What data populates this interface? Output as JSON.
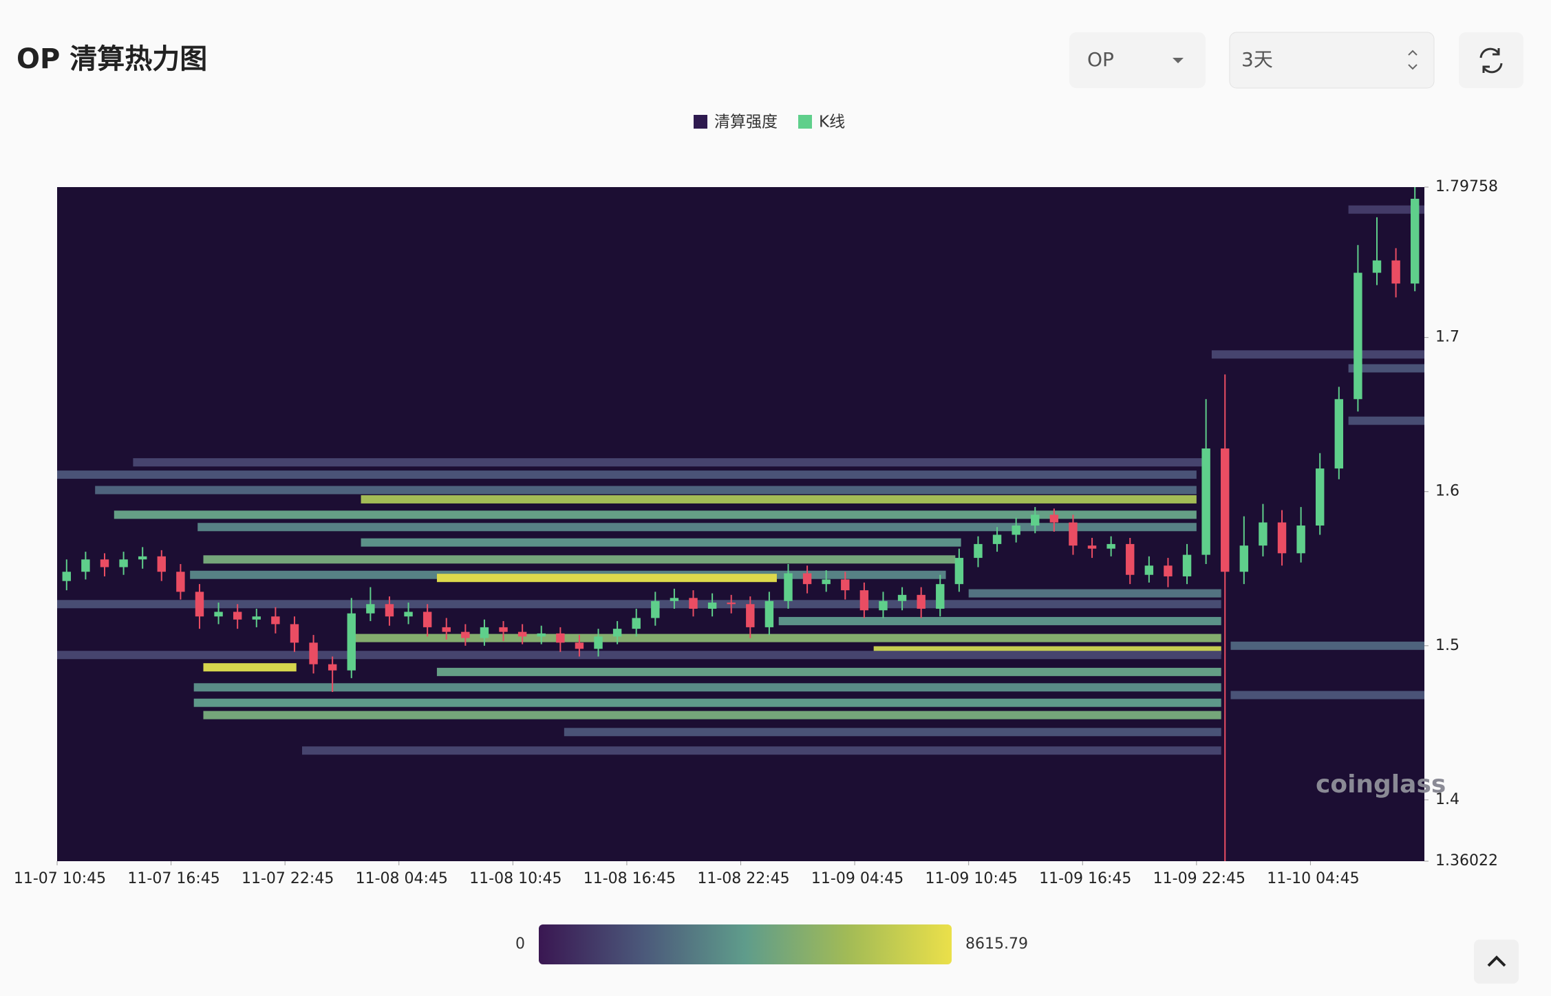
{
  "chart_data": {
    "type": "liquidation-heatmap",
    "title": "OP 清算热力图",
    "symbol": "OP",
    "range": "3天",
    "watermark": "coinglass",
    "background": "#1c0e33",
    "xlim": [
      0,
      72
    ],
    "xticks": [
      {
        "value": 0,
        "label": "11-07 10:45"
      },
      {
        "value": 6,
        "label": "11-07 16:45"
      },
      {
        "value": 12,
        "label": "11-07 22:45"
      },
      {
        "value": 18,
        "label": "11-08 04:45"
      },
      {
        "value": 24,
        "label": "11-08 10:45"
      },
      {
        "value": 30,
        "label": "11-08 16:45"
      },
      {
        "value": 36,
        "label": "11-08 22:45"
      },
      {
        "value": 42,
        "label": "11-09 04:45"
      },
      {
        "value": 48,
        "label": "11-09 10:45"
      },
      {
        "value": 54,
        "label": "11-09 16:45"
      },
      {
        "value": 60,
        "label": "11-09 22:45"
      },
      {
        "value": 66,
        "label": "11-10 04:45"
      }
    ],
    "ylim": [
      1.36022,
      1.79758
    ],
    "yticks": [
      1.36022,
      1.4,
      1.5,
      1.6,
      1.7,
      1.79758
    ],
    "colorbar": {
      "min": 0,
      "max": 8615.79,
      "colors": [
        "#3a1752",
        "#4b587a",
        "#5f9c8b",
        "#a2bb56",
        "#ebe04a"
      ]
    },
    "series": [
      {
        "name": "清算强度",
        "color": "#2e1a4f",
        "price": [
          1.619,
          1.611,
          1.601,
          1.595,
          1.585,
          1.577,
          1.567,
          1.556,
          1.546,
          1.544,
          1.534,
          1.527,
          1.516,
          1.505,
          1.497,
          1.494,
          1.486,
          1.483,
          1.473,
          1.463,
          1.455,
          1.444,
          1.432,
          1.783,
          1.689,
          1.68,
          1.646,
          1.5,
          1.468
        ],
        "start": [
          4,
          0,
          2,
          16,
          3,
          7.4,
          16,
          7.7,
          7,
          20,
          48,
          0,
          38,
          15.5,
          43,
          0,
          7.7,
          20,
          7.2,
          7.2,
          7.7,
          26.7,
          12.9,
          68,
          60.8,
          68,
          68,
          61.8,
          61.8
        ],
        "end": [
          60.3,
          60,
          60,
          60,
          60,
          60,
          47.6,
          47.3,
          46.8,
          37.9,
          61.3,
          61.3,
          61.3,
          61.3,
          61.3,
          61.3,
          12.6,
          61.3,
          61.3,
          61.3,
          61.3,
          61.3,
          61.3,
          72,
          72,
          72,
          72,
          72,
          72
        ],
        "values": [
          1500,
          2000,
          2500,
          6500,
          4500,
          3500,
          4000,
          5000,
          3500,
          8200,
          3000,
          1800,
          4000,
          5500,
          7500,
          1500,
          8000,
          4500,
          3800,
          4200,
          5000,
          2000,
          1500,
          1200,
          1500,
          2000,
          1800,
          2500,
          2000
        ]
      },
      {
        "name": "K线",
        "color": "#5fcf8b",
        "down_color": "#ea4d63",
        "x": [
          0,
          1,
          2,
          3,
          4,
          5,
          6,
          7,
          8,
          9,
          10,
          11,
          12,
          13,
          14,
          15,
          16,
          17,
          18,
          19,
          20,
          21,
          22,
          23,
          24,
          25,
          26,
          27,
          28,
          29,
          30,
          31,
          32,
          33,
          34,
          35,
          36,
          37,
          38,
          39,
          40,
          41,
          42,
          43,
          44,
          45,
          46,
          47,
          48,
          49,
          50,
          51,
          52,
          53,
          54,
          55,
          56,
          57,
          58,
          59,
          60,
          61,
          62,
          63,
          64,
          65,
          66,
          67,
          68,
          69,
          70,
          71
        ],
        "open": [
          1.542,
          1.548,
          1.556,
          1.551,
          1.556,
          1.558,
          1.548,
          1.535,
          1.519,
          1.522,
          1.517,
          1.519,
          1.514,
          1.502,
          1.488,
          1.484,
          1.521,
          1.527,
          1.519,
          1.522,
          1.512,
          1.509,
          1.505,
          1.512,
          1.509,
          1.506,
          1.508,
          1.502,
          1.498,
          1.506,
          1.511,
          1.518,
          1.529,
          1.531,
          1.524,
          1.528,
          1.527,
          1.512,
          1.529,
          1.547,
          1.54,
          1.543,
          1.536,
          1.523,
          1.529,
          1.533,
          1.524,
          1.54,
          1.557,
          1.566,
          1.572,
          1.578,
          1.585,
          1.58,
          1.565,
          1.563,
          1.566,
          1.546,
          1.552,
          1.545,
          1.559,
          1.628,
          1.548,
          1.565,
          1.58,
          1.56,
          1.578,
          1.615,
          1.66,
          1.742,
          1.75,
          1.735
        ],
        "high": [
          1.556,
          1.561,
          1.56,
          1.561,
          1.564,
          1.562,
          1.553,
          1.54,
          1.528,
          1.527,
          1.524,
          1.525,
          1.519,
          1.507,
          1.493,
          1.531,
          1.538,
          1.532,
          1.528,
          1.527,
          1.518,
          1.514,
          1.517,
          1.516,
          1.514,
          1.513,
          1.512,
          1.507,
          1.511,
          1.516,
          1.524,
          1.535,
          1.537,
          1.536,
          1.534,
          1.533,
          1.532,
          1.535,
          1.553,
          1.552,
          1.549,
          1.548,
          1.541,
          1.535,
          1.538,
          1.538,
          1.546,
          1.563,
          1.571,
          1.577,
          1.583,
          1.59,
          1.589,
          1.585,
          1.57,
          1.571,
          1.57,
          1.558,
          1.557,
          1.566,
          1.66,
          1.676,
          1.584,
          1.592,
          1.588,
          1.59,
          1.625,
          1.668,
          1.76,
          1.778,
          1.758,
          1.79758
        ],
        "low": [
          1.536,
          1.543,
          1.545,
          1.546,
          1.55,
          1.542,
          1.53,
          1.511,
          1.514,
          1.511,
          1.512,
          1.508,
          1.496,
          1.482,
          1.47,
          1.479,
          1.516,
          1.513,
          1.514,
          1.506,
          1.504,
          1.5,
          1.5,
          1.503,
          1.501,
          1.501,
          1.496,
          1.493,
          1.493,
          1.501,
          1.506,
          1.513,
          1.524,
          1.519,
          1.519,
          1.521,
          1.505,
          1.507,
          1.524,
          1.534,
          1.535,
          1.53,
          1.518,
          1.518,
          1.523,
          1.518,
          1.519,
          1.535,
          1.551,
          1.561,
          1.567,
          1.573,
          1.574,
          1.559,
          1.557,
          1.558,
          1.54,
          1.541,
          1.538,
          1.54,
          1.553,
          1.36022,
          1.54,
          1.558,
          1.552,
          1.554,
          1.572,
          1.608,
          1.652,
          1.734,
          1.726,
          1.73
        ],
        "close": [
          1.548,
          1.556,
          1.551,
          1.556,
          1.558,
          1.548,
          1.535,
          1.519,
          1.522,
          1.517,
          1.519,
          1.514,
          1.502,
          1.488,
          1.484,
          1.521,
          1.527,
          1.519,
          1.522,
          1.512,
          1.509,
          1.505,
          1.512,
          1.509,
          1.506,
          1.508,
          1.502,
          1.498,
          1.506,
          1.511,
          1.518,
          1.529,
          1.531,
          1.524,
          1.528,
          1.527,
          1.512,
          1.529,
          1.547,
          1.54,
          1.543,
          1.536,
          1.523,
          1.529,
          1.533,
          1.524,
          1.54,
          1.557,
          1.566,
          1.572,
          1.578,
          1.585,
          1.58,
          1.565,
          1.563,
          1.566,
          1.546,
          1.552,
          1.545,
          1.559,
          1.628,
          1.548,
          1.565,
          1.58,
          1.56,
          1.578,
          1.615,
          1.66,
          1.742,
          1.75,
          1.735,
          1.79
        ]
      }
    ]
  }
}
